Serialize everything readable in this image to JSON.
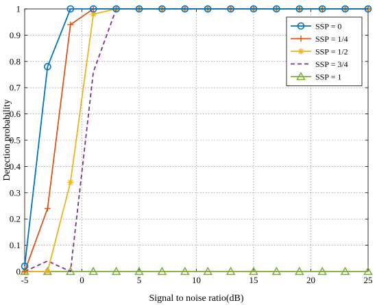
{
  "chart_data": {
    "type": "line",
    "title": "",
    "xlabel": "Signal to noise ratio(dB)",
    "ylabel": "Detection probability",
    "xlim": [
      -5,
      25
    ],
    "ylim": [
      0,
      1
    ],
    "xticks": [
      -5,
      0,
      5,
      10,
      15,
      20,
      25
    ],
    "yticks": [
      0,
      0.1,
      0.2,
      0.3,
      0.4,
      0.5,
      0.6,
      0.7,
      0.8,
      0.9,
      1
    ],
    "xtick_labels": [
      "-5",
      "0",
      "5",
      "10",
      "15",
      "20",
      "25"
    ],
    "ytick_labels": [
      "0",
      "0.1",
      "0.2",
      "0.3",
      "0.4",
      "0.5",
      "0.6",
      "0.7",
      "0.8",
      "0.9",
      "1"
    ],
    "grid": true,
    "legend_position": "top-right",
    "x": [
      -5,
      -3,
      -1,
      1,
      3,
      5,
      7,
      9,
      11,
      13,
      15,
      17,
      19,
      21,
      23,
      25
    ],
    "series": [
      {
        "name": "SSP = 0",
        "color": "#0072BD",
        "marker": "circle",
        "style": "solid",
        "values": [
          0.02,
          0.78,
          1,
          1,
          1,
          1,
          1,
          1,
          1,
          1,
          1,
          1,
          1,
          1,
          1,
          1
        ]
      },
      {
        "name": "SSP = 1/4",
        "color": "#D95319",
        "marker": "plus",
        "style": "solid",
        "values": [
          0,
          0.24,
          0.94,
          1,
          1,
          1,
          1,
          1,
          1,
          1,
          1,
          1,
          1,
          1,
          1,
          1
        ]
      },
      {
        "name": "SSP = 1/2",
        "color": "#EDB120",
        "marker": "asterisk",
        "style": "solid",
        "values": [
          0,
          0,
          0.34,
          0.98,
          1,
          1,
          1,
          1,
          1,
          1,
          1,
          1,
          1,
          1,
          1,
          1
        ]
      },
      {
        "name": "SSP = 3/4",
        "color": "#7E2F8E",
        "marker": "none",
        "style": "dashed",
        "values": [
          0,
          0.04,
          0,
          0.76,
          1,
          1,
          1,
          1,
          1,
          1,
          1,
          1,
          1,
          1,
          1,
          1
        ]
      },
      {
        "name": "SSP = 1",
        "color": "#77AC30",
        "marker": "triangle",
        "style": "solid",
        "values": [
          0,
          0,
          0,
          0,
          0,
          0,
          0,
          0,
          0,
          0,
          0,
          0,
          0,
          0,
          0,
          0
        ]
      }
    ]
  }
}
